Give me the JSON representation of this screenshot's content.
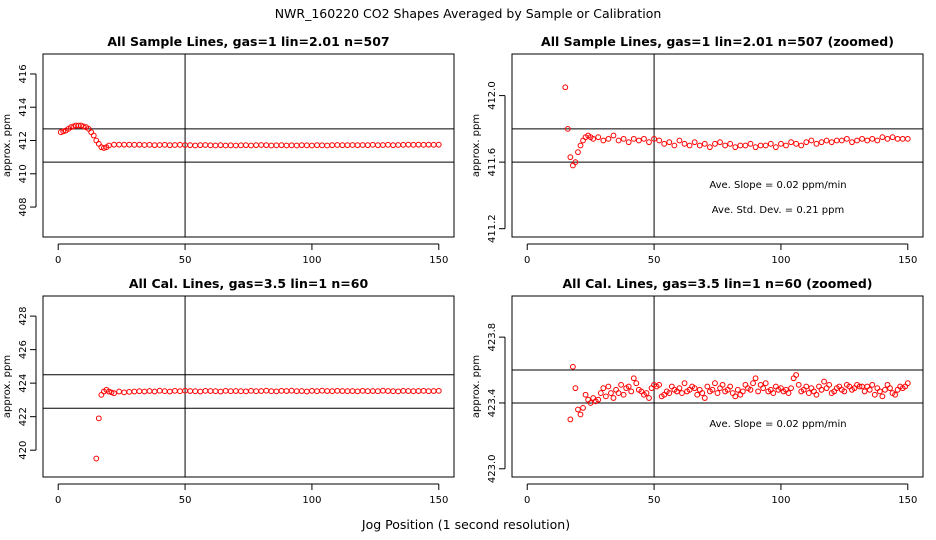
{
  "figure": {
    "title": "NWR_160220  CO2 Shapes Averaged by Sample or Calibration",
    "xlabel": "Jog Position (1 second resolution)"
  },
  "chart_data": [
    {
      "type": "scatter",
      "title": "All Sample Lines, gas=1 lin=2.01 n=507",
      "ylabel": "approx. ppm",
      "xlim": [
        -6,
        156
      ],
      "ylim": [
        406.2,
        417.2
      ],
      "xticks": [
        0,
        50,
        100,
        150
      ],
      "yticks": [
        408,
        410,
        412,
        414,
        416
      ],
      "hlines": [
        412.7,
        410.7
      ],
      "vlines": [
        50
      ],
      "marker_color": "#ff0000",
      "annotations": [],
      "series": [
        {
          "x": [
            1,
            2,
            3,
            4,
            5,
            6,
            7,
            8,
            9,
            10,
            11,
            12,
            13,
            14,
            15,
            16,
            17,
            18,
            19,
            20,
            22,
            24,
            26,
            28,
            30,
            32,
            34,
            36,
            38,
            40,
            42,
            44,
            46,
            48,
            50,
            52,
            54,
            56,
            58,
            60,
            62,
            64,
            66,
            68,
            70,
            72,
            74,
            76,
            78,
            80,
            82,
            84,
            86,
            88,
            90,
            92,
            94,
            96,
            98,
            100,
            102,
            104,
            106,
            108,
            110,
            112,
            114,
            116,
            118,
            120,
            122,
            124,
            126,
            128,
            130,
            132,
            134,
            136,
            138,
            140,
            142,
            144,
            146,
            148,
            150
          ],
          "y": [
            412.5,
            412.55,
            412.6,
            412.7,
            412.8,
            412.85,
            412.9,
            412.9,
            412.9,
            412.85,
            412.8,
            412.7,
            412.5,
            412.3,
            412.0,
            411.8,
            411.6,
            411.55,
            411.6,
            411.7,
            411.75,
            411.75,
            411.75,
            411.75,
            411.74,
            411.75,
            411.73,
            411.74,
            411.72,
            411.73,
            411.74,
            411.72,
            411.73,
            411.74,
            411.73,
            411.72,
            411.7,
            411.72,
            411.73,
            411.71,
            411.7,
            411.72,
            411.7,
            411.71,
            411.7,
            411.71,
            411.72,
            411.7,
            411.72,
            411.73,
            411.72,
            411.7,
            411.71,
            411.72,
            411.7,
            411.71,
            411.7,
            411.72,
            411.71,
            411.7,
            411.72,
            411.71,
            411.7,
            411.72,
            411.73,
            411.72,
            411.72,
            411.73,
            411.72,
            411.73,
            411.72,
            411.74,
            411.72,
            411.73,
            411.74,
            411.72,
            411.73,
            411.74,
            411.75,
            411.74,
            411.75,
            411.74,
            411.75,
            411.74,
            411.75
          ]
        }
      ]
    },
    {
      "type": "scatter",
      "title": "All Sample Lines, gas=1 lin=2.01 n=507 (zoomed)",
      "ylabel": "approx. ppm",
      "xlim": [
        -6,
        156
      ],
      "ylim": [
        411.15,
        412.25
      ],
      "xticks": [
        0,
        50,
        100,
        150
      ],
      "yticks": [
        411.2,
        411.6,
        412.0
      ],
      "hlines": [
        411.8,
        411.6
      ],
      "vlines": [
        50
      ],
      "marker_color": "#ff0000",
      "annotations": [
        "Ave. Slope =  0.02  ppm/min",
        "Ave. Std. Dev. =  0.21  ppm"
      ],
      "series": [
        {
          "x": [
            15,
            16,
            17,
            18,
            19,
            20,
            21,
            22,
            23,
            24,
            25,
            26,
            28,
            30,
            32,
            34,
            36,
            38,
            40,
            42,
            44,
            46,
            48,
            50,
            52,
            54,
            56,
            58,
            60,
            62,
            64,
            66,
            68,
            70,
            72,
            74,
            76,
            78,
            80,
            82,
            84,
            86,
            88,
            90,
            92,
            94,
            96,
            98,
            100,
            102,
            104,
            106,
            108,
            110,
            112,
            114,
            116,
            118,
            120,
            122,
            124,
            126,
            128,
            130,
            132,
            134,
            136,
            138,
            140,
            142,
            144,
            146,
            148,
            150
          ],
          "y": [
            412.05,
            411.8,
            411.63,
            411.58,
            411.6,
            411.66,
            411.7,
            411.73,
            411.75,
            411.76,
            411.75,
            411.74,
            411.75,
            411.73,
            411.74,
            411.76,
            411.73,
            411.74,
            411.72,
            411.74,
            411.73,
            411.74,
            411.72,
            411.74,
            411.73,
            411.71,
            411.72,
            411.7,
            411.73,
            411.71,
            411.7,
            411.72,
            411.7,
            411.71,
            411.69,
            411.71,
            411.72,
            411.7,
            411.71,
            411.69,
            411.7,
            411.7,
            411.71,
            411.69,
            411.7,
            411.7,
            411.71,
            411.69,
            411.71,
            411.7,
            411.72,
            411.71,
            411.7,
            411.72,
            411.73,
            411.71,
            411.72,
            411.73,
            411.72,
            411.73,
            411.73,
            411.74,
            411.72,
            411.73,
            411.74,
            411.73,
            411.74,
            411.73,
            411.75,
            411.74,
            411.75,
            411.74,
            411.74,
            411.74
          ]
        }
      ]
    },
    {
      "type": "scatter",
      "title": "All Cal. Lines, gas=3.5 lin=1 n=60",
      "ylabel": "approx. ppm",
      "xlim": [
        -6,
        156
      ],
      "ylim": [
        418.4,
        429.2
      ],
      "xticks": [
        0,
        50,
        100,
        150
      ],
      "yticks": [
        420,
        422,
        424,
        426,
        428
      ],
      "hlines": [
        424.5,
        422.5
      ],
      "vlines": [
        50
      ],
      "marker_color": "#ff0000",
      "annotations": [],
      "series": [
        {
          "x": [
            15,
            16,
            17,
            18,
            19,
            20,
            21,
            22,
            24,
            26,
            28,
            30,
            32,
            34,
            36,
            38,
            40,
            42,
            44,
            46,
            48,
            50,
            52,
            54,
            56,
            58,
            60,
            62,
            64,
            66,
            68,
            70,
            72,
            74,
            76,
            78,
            80,
            82,
            84,
            86,
            88,
            90,
            92,
            94,
            96,
            98,
            100,
            102,
            104,
            106,
            108,
            110,
            112,
            114,
            116,
            118,
            120,
            122,
            124,
            126,
            128,
            130,
            132,
            134,
            136,
            138,
            140,
            142,
            144,
            146,
            148,
            150
          ],
          "y": [
            419.5,
            421.9,
            423.3,
            423.5,
            423.6,
            423.5,
            423.45,
            423.4,
            423.5,
            423.45,
            423.48,
            423.5,
            423.52,
            423.5,
            423.53,
            423.5,
            423.55,
            423.52,
            423.5,
            423.54,
            423.52,
            423.55,
            423.53,
            423.52,
            423.5,
            423.54,
            423.53,
            423.52,
            423.5,
            423.54,
            423.52,
            423.53,
            423.52,
            423.51,
            423.54,
            423.52,
            423.53,
            423.55,
            423.52,
            423.51,
            423.54,
            423.53,
            423.55,
            423.52,
            423.53,
            423.5,
            423.54,
            423.52,
            423.55,
            423.53,
            423.52,
            423.54,
            423.53,
            423.52,
            423.53,
            423.51,
            423.54,
            423.52,
            423.53,
            423.52,
            423.55,
            423.53,
            423.52,
            423.51,
            423.54,
            423.53,
            423.52,
            423.53,
            423.54,
            423.52,
            423.53,
            423.54
          ]
        }
      ]
    },
    {
      "type": "scatter",
      "title": "All Cal. Lines, gas=3.5 lin=1 n=60 (zoomed)",
      "ylabel": "approx. ppm",
      "xlim": [
        -6,
        156
      ],
      "ylim": [
        422.95,
        424.05
      ],
      "xticks": [
        0,
        50,
        100,
        150
      ],
      "yticks": [
        423.0,
        423.4,
        423.8
      ],
      "hlines": [
        423.6,
        423.4
      ],
      "vlines": [
        50
      ],
      "marker_color": "#ff0000",
      "annotations": [
        "Ave. Slope =  0.02  ppm/min"
      ],
      "series": [
        {
          "x": [
            17,
            18,
            19,
            20,
            21,
            22,
            23,
            24,
            25,
            26,
            27,
            28,
            29,
            30,
            31,
            32,
            33,
            34,
            35,
            36,
            37,
            38,
            39,
            40,
            41,
            42,
            43,
            44,
            45,
            46,
            47,
            48,
            49,
            50,
            51,
            52,
            53,
            54,
            55,
            56,
            57,
            58,
            59,
            60,
            61,
            62,
            63,
            64,
            65,
            66,
            67,
            68,
            69,
            70,
            71,
            72,
            73,
            74,
            75,
            76,
            77,
            78,
            79,
            80,
            81,
            82,
            83,
            84,
            85,
            86,
            87,
            88,
            89,
            90,
            91,
            92,
            93,
            94,
            95,
            96,
            97,
            98,
            99,
            100,
            101,
            102,
            103,
            104,
            105,
            106,
            107,
            108,
            109,
            110,
            111,
            112,
            113,
            114,
            115,
            116,
            117,
            118,
            119,
            120,
            121,
            122,
            123,
            124,
            125,
            126,
            127,
            128,
            129,
            130,
            131,
            132,
            133,
            134,
            135,
            136,
            137,
            138,
            139,
            140,
            141,
            142,
            143,
            144,
            145,
            146,
            147,
            148,
            149,
            150
          ],
          "y": [
            423.3,
            423.62,
            423.49,
            423.36,
            423.33,
            423.37,
            423.45,
            423.42,
            423.4,
            423.43,
            423.41,
            423.42,
            423.46,
            423.49,
            423.44,
            423.5,
            423.46,
            423.43,
            423.48,
            423.46,
            423.51,
            423.45,
            423.49,
            423.5,
            423.47,
            423.55,
            423.52,
            423.48,
            423.47,
            423.45,
            423.46,
            423.43,
            423.49,
            423.51,
            423.5,
            423.51,
            423.44,
            423.45,
            423.47,
            423.46,
            423.5,
            423.48,
            423.47,
            423.49,
            423.46,
            423.52,
            423.47,
            423.48,
            423.5,
            423.49,
            423.45,
            423.48,
            423.46,
            423.43,
            423.5,
            423.47,
            423.48,
            423.52,
            423.46,
            423.49,
            423.51,
            423.47,
            423.48,
            423.5,
            423.46,
            423.44,
            423.48,
            423.45,
            423.47,
            423.51,
            423.49,
            423.48,
            423.52,
            423.55,
            423.47,
            423.51,
            423.49,
            423.52,
            423.47,
            423.48,
            423.46,
            423.5,
            423.48,
            423.49,
            423.47,
            423.48,
            423.46,
            423.49,
            423.55,
            423.57,
            423.51,
            423.47,
            423.48,
            423.5,
            423.46,
            423.49,
            423.47,
            423.45,
            423.5,
            423.48,
            423.53,
            423.49,
            423.51,
            423.46,
            423.47,
            423.49,
            423.5,
            423.48,
            423.47,
            423.51,
            423.5,
            423.48,
            423.49,
            423.51,
            423.5,
            423.5,
            423.47,
            423.5,
            423.48,
            423.51,
            423.45,
            423.49,
            423.47,
            423.44,
            423.48,
            423.51,
            423.49,
            423.46,
            423.45,
            423.48,
            423.5,
            423.49,
            423.5,
            423.52
          ]
        }
      ]
    }
  ]
}
